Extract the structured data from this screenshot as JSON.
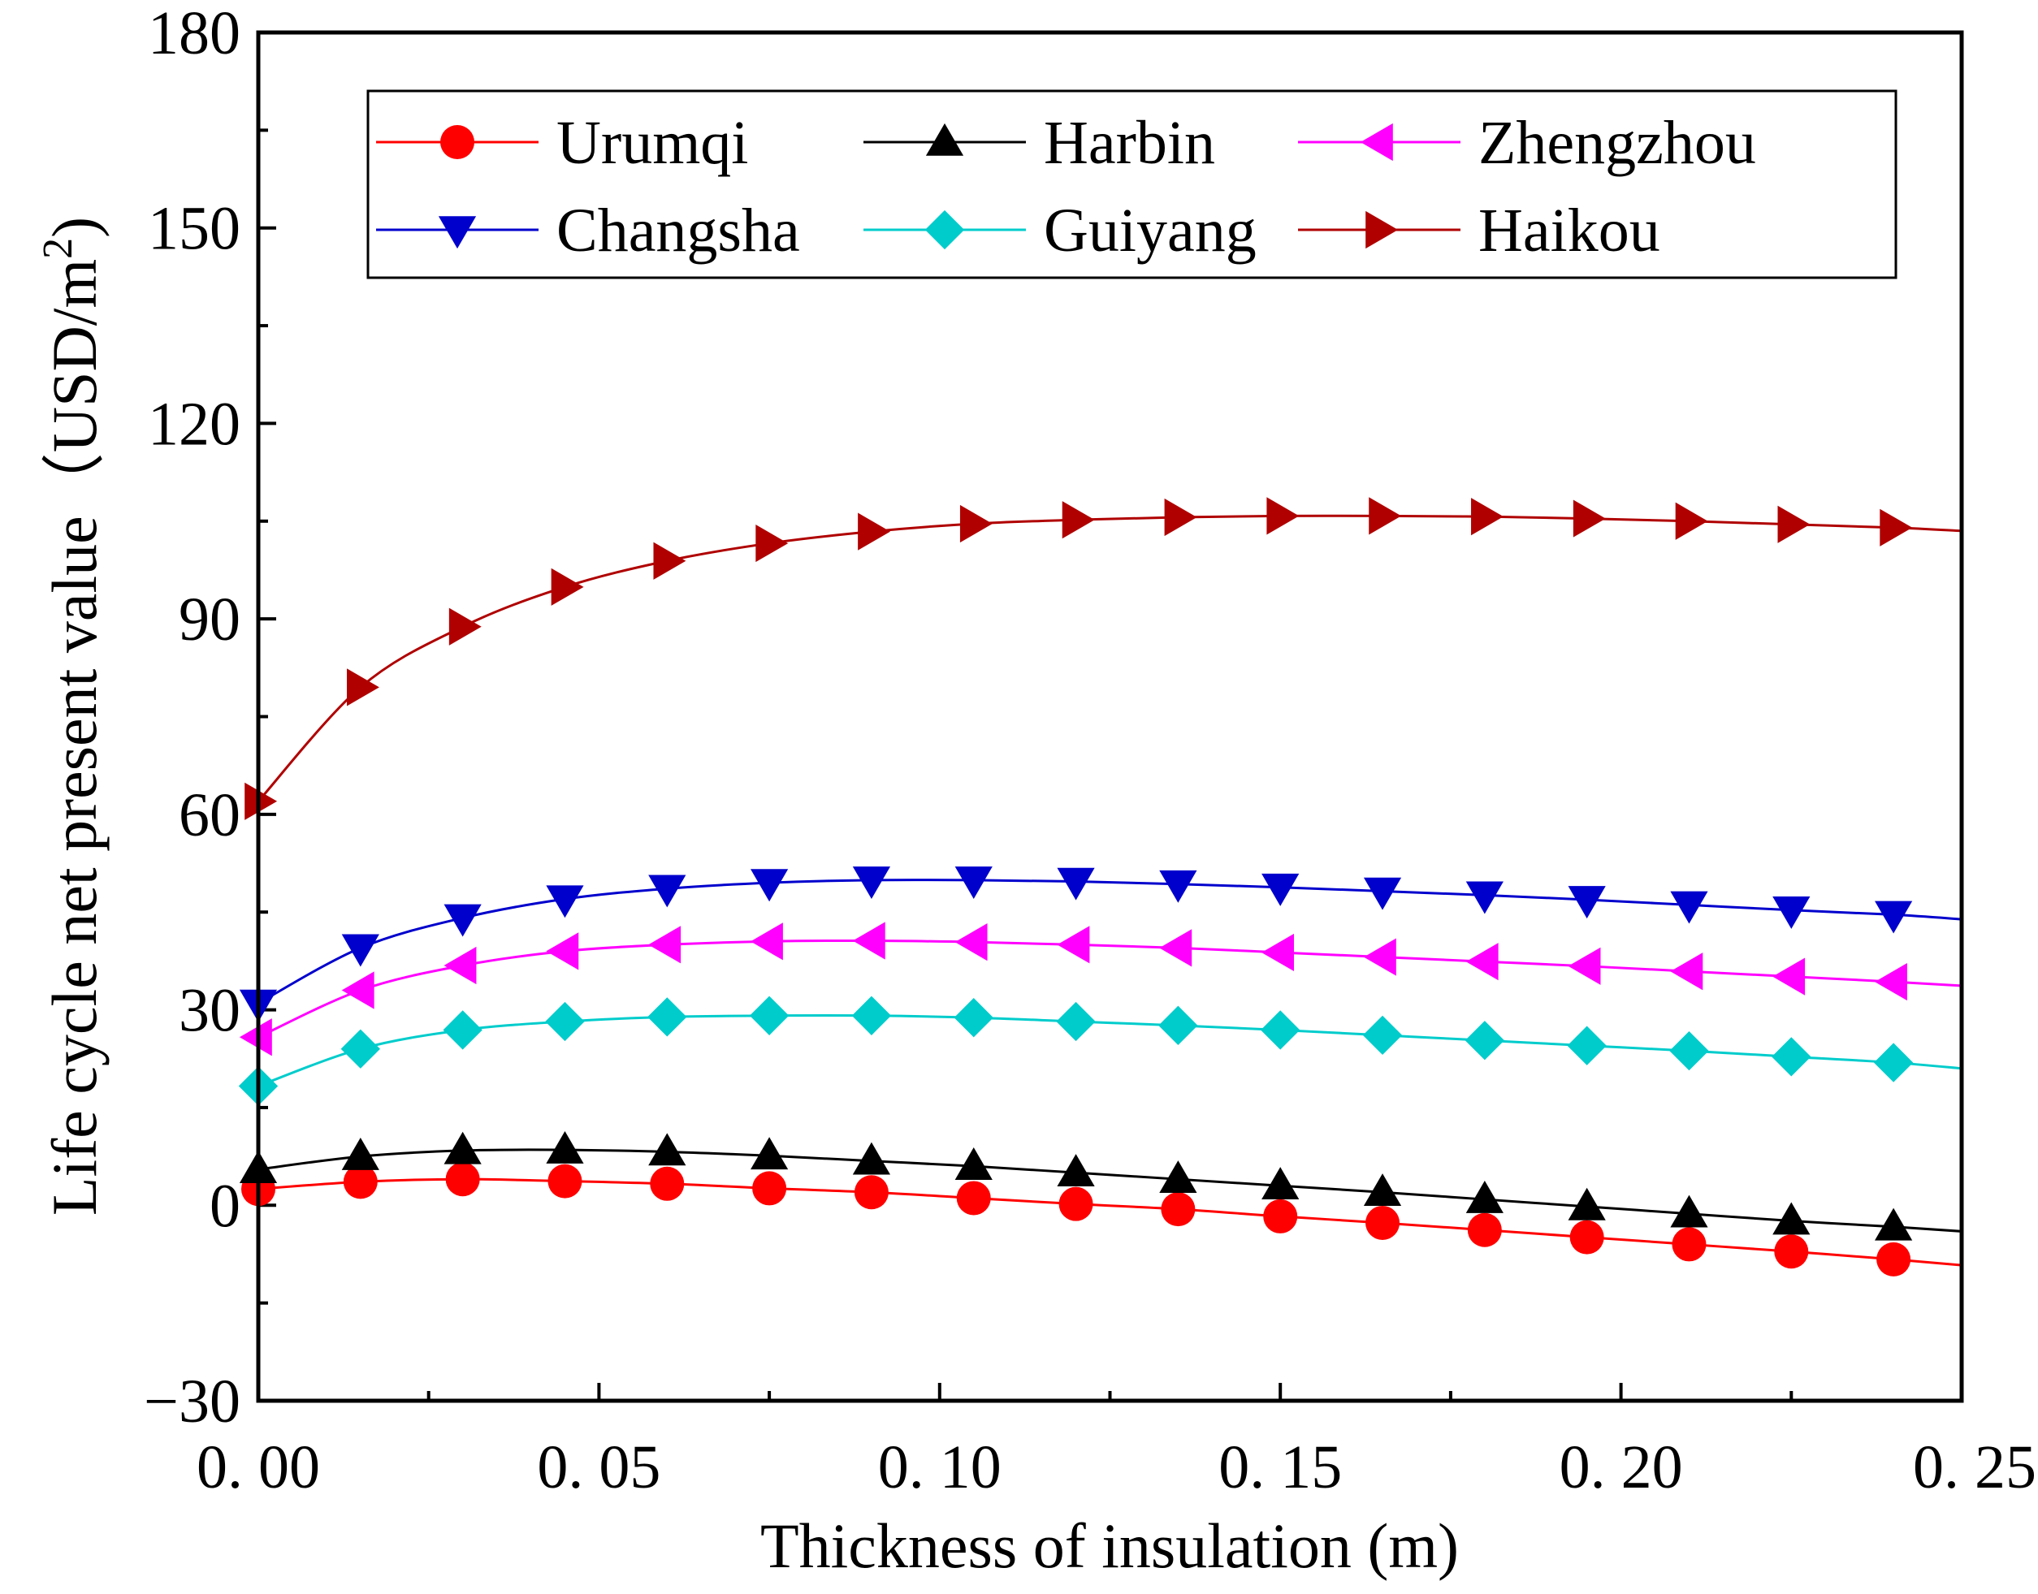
{
  "chart_data": {
    "type": "line",
    "title": "",
    "xlabel": "Thickness of insulation (m)",
    "ylabel": "Life cycle net present value",
    "ylabel_unit_prefix": "（USD/m",
    "ylabel_unit_sup": "2",
    "ylabel_unit_suffix": ")",
    "xlim": [
      0,
      0.25
    ],
    "ylim": [
      -30,
      180
    ],
    "xticks": [
      0.0,
      0.05,
      0.1,
      0.15,
      0.2,
      0.25
    ],
    "xtick_labels": [
      "0. 00",
      "0. 05",
      "0. 10",
      "0. 15",
      "0. 20",
      "0. 25"
    ],
    "yticks": [
      -30,
      0,
      30,
      60,
      90,
      120,
      150,
      180
    ],
    "ytick_labels": [
      "−30",
      "0",
      "30",
      "60",
      "90",
      "120",
      "150",
      "180"
    ],
    "grid": false,
    "legend_position": "top",
    "x": [
      0.0,
      0.015,
      0.03,
      0.045,
      0.06,
      0.075,
      0.09,
      0.105,
      0.12,
      0.135,
      0.15,
      0.165,
      0.18,
      0.195,
      0.21,
      0.225,
      0.24
    ],
    "series": [
      {
        "name": "Urumqi",
        "color": "#ff0000",
        "marker": "circle",
        "values": [
          2.5,
          3.6,
          4.0,
          3.7,
          3.3,
          2.6,
          2.0,
          1.1,
          0.2,
          -0.6,
          -1.7,
          -2.7,
          -3.8,
          -4.9,
          -6.0,
          -7.1,
          -8.3
        ],
        "end_value": -9.2
      },
      {
        "name": "Harbin",
        "color": "#000000",
        "marker": "triangle-up",
        "values": [
          5.5,
          7.5,
          8.4,
          8.5,
          8.2,
          7.6,
          6.8,
          6.0,
          5.0,
          4.0,
          3.0,
          2.0,
          0.9,
          -0.2,
          -1.3,
          -2.4,
          -3.3
        ],
        "end_value": -4.0
      },
      {
        "name": "Zhengzhou",
        "color": "#ff00ff",
        "marker": "triangle-left",
        "values": [
          25.8,
          33.0,
          36.8,
          39.0,
          40.0,
          40.5,
          40.6,
          40.4,
          40.0,
          39.5,
          38.8,
          38.1,
          37.4,
          36.7,
          35.9,
          35.1,
          34.3
        ],
        "end_value": 33.7
      },
      {
        "name": "Changsha",
        "color": "#0000cd",
        "marker": "triangle-down",
        "values": [
          31.0,
          39.5,
          44.1,
          47.0,
          48.6,
          49.5,
          49.9,
          49.9,
          49.7,
          49.3,
          48.8,
          48.2,
          47.6,
          46.9,
          46.1,
          45.3,
          44.6
        ],
        "end_value": 43.9
      },
      {
        "name": "Guiyang",
        "color": "#00cccc",
        "marker": "diamond",
        "values": [
          18.3,
          24.0,
          26.9,
          28.2,
          28.9,
          29.1,
          29.1,
          28.8,
          28.2,
          27.6,
          26.9,
          26.1,
          25.3,
          24.5,
          23.7,
          22.8,
          21.9
        ],
        "end_value": 21.0
      },
      {
        "name": "Haikou",
        "color": "#b00000",
        "marker": "triangle-right",
        "values": [
          62.0,
          79.5,
          88.8,
          94.9,
          98.9,
          101.6,
          103.4,
          104.6,
          105.2,
          105.6,
          105.8,
          105.8,
          105.7,
          105.4,
          105.0,
          104.5,
          104.0
        ],
        "end_value": 103.5
      }
    ]
  }
}
